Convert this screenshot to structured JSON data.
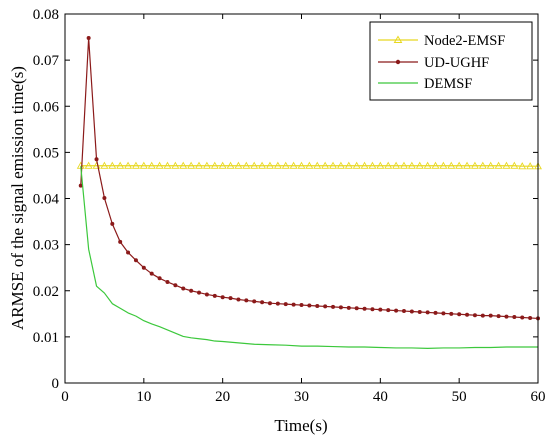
{
  "chart_data": {
    "type": "line",
    "title": "",
    "xlabel": "Time(s)",
    "ylabel": "ARMSE of the signal emission time(s)",
    "xlim": [
      0,
      60
    ],
    "ylim": [
      0,
      0.08
    ],
    "x_ticks": [
      0,
      10,
      20,
      30,
      40,
      50,
      60
    ],
    "x_tick_labels": [
      "0",
      "10",
      "20",
      "30",
      "40",
      "50",
      "60"
    ],
    "y_ticks": [
      0,
      0.01,
      0.02,
      0.03,
      0.04,
      0.05,
      0.06,
      0.07,
      0.08
    ],
    "y_tick_labels": [
      "0",
      "0.01",
      "0.02",
      "0.03",
      "0.04",
      "0.05",
      "0.06",
      "0.07",
      "0.08"
    ],
    "grid": false,
    "legend_position": "top-right",
    "series": [
      {
        "name": "Node2-EMSF",
        "color": "#e8d820",
        "marker": "triangle",
        "x": [
          2,
          3,
          4,
          5,
          6,
          7,
          8,
          9,
          10,
          11,
          12,
          13,
          14,
          15,
          16,
          17,
          18,
          19,
          20,
          21,
          22,
          23,
          24,
          25,
          26,
          27,
          28,
          29,
          30,
          31,
          32,
          33,
          34,
          35,
          36,
          37,
          38,
          39,
          40,
          41,
          42,
          43,
          44,
          45,
          46,
          47,
          48,
          49,
          50,
          51,
          52,
          53,
          54,
          55,
          56,
          57,
          58,
          59,
          60
        ],
        "y": [
          0.0471,
          0.0471,
          0.0471,
          0.0471,
          0.0471,
          0.0471,
          0.0471,
          0.0471,
          0.0471,
          0.0471,
          0.0471,
          0.0471,
          0.0471,
          0.0471,
          0.0471,
          0.0471,
          0.0471,
          0.0471,
          0.0471,
          0.0471,
          0.0471,
          0.0471,
          0.0471,
          0.0471,
          0.0471,
          0.0471,
          0.0471,
          0.0471,
          0.0471,
          0.0471,
          0.0471,
          0.0471,
          0.0471,
          0.0471,
          0.0471,
          0.0471,
          0.0471,
          0.0471,
          0.0471,
          0.0471,
          0.0471,
          0.0471,
          0.0471,
          0.0471,
          0.0471,
          0.0471,
          0.0471,
          0.0471,
          0.0471,
          0.0471,
          0.0471,
          0.0471,
          0.0471,
          0.0471,
          0.0471,
          0.0471,
          0.047,
          0.047,
          0.047
        ]
      },
      {
        "name": "UD-UGHF",
        "color": "#8b1a1a",
        "marker": "dot",
        "x": [
          2,
          3,
          4,
          5,
          6,
          7,
          8,
          9,
          10,
          11,
          12,
          13,
          14,
          15,
          16,
          17,
          18,
          19,
          20,
          21,
          22,
          23,
          24,
          25,
          26,
          27,
          28,
          29,
          30,
          31,
          32,
          33,
          34,
          35,
          36,
          37,
          38,
          39,
          40,
          41,
          42,
          43,
          44,
          45,
          46,
          47,
          48,
          49,
          50,
          51,
          52,
          53,
          54,
          55,
          56,
          57,
          58,
          59,
          60
        ],
        "y": [
          0.0428,
          0.0748,
          0.0485,
          0.0401,
          0.0345,
          0.0306,
          0.0283,
          0.0266,
          0.025,
          0.0237,
          0.0227,
          0.0219,
          0.0212,
          0.0205,
          0.02,
          0.0196,
          0.0192,
          0.0189,
          0.0186,
          0.0184,
          0.0181,
          0.0179,
          0.0177,
          0.0175,
          0.0173,
          0.0172,
          0.0171,
          0.017,
          0.0169,
          0.0168,
          0.0167,
          0.0166,
          0.0165,
          0.0164,
          0.0163,
          0.0162,
          0.0161,
          0.016,
          0.0159,
          0.0158,
          0.0157,
          0.0156,
          0.0155,
          0.0154,
          0.0153,
          0.0152,
          0.0151,
          0.015,
          0.0149,
          0.0148,
          0.0147,
          0.0146,
          0.0146,
          0.0145,
          0.0144,
          0.0143,
          0.0142,
          0.0141,
          0.014
        ]
      },
      {
        "name": "DEMSF",
        "color": "#3cc83c",
        "marker": "none",
        "x": [
          2,
          3,
          4,
          5,
          6,
          7,
          8,
          9,
          10,
          11,
          12,
          13,
          14,
          15,
          16,
          17,
          18,
          19,
          20,
          22,
          24,
          26,
          28,
          30,
          32,
          34,
          36,
          38,
          40,
          42,
          44,
          46,
          48,
          50,
          52,
          54,
          56,
          58,
          60
        ],
        "y": [
          0.047,
          0.029,
          0.021,
          0.0195,
          0.0172,
          0.0162,
          0.0152,
          0.0145,
          0.0135,
          0.0128,
          0.0122,
          0.0115,
          0.0108,
          0.0101,
          0.0098,
          0.0096,
          0.0094,
          0.0091,
          0.009,
          0.0087,
          0.0084,
          0.0083,
          0.0082,
          0.008,
          0.008,
          0.0079,
          0.0078,
          0.0078,
          0.0077,
          0.0076,
          0.0076,
          0.0075,
          0.0076,
          0.0076,
          0.0077,
          0.0077,
          0.0078,
          0.0078,
          0.0078
        ]
      }
    ]
  }
}
